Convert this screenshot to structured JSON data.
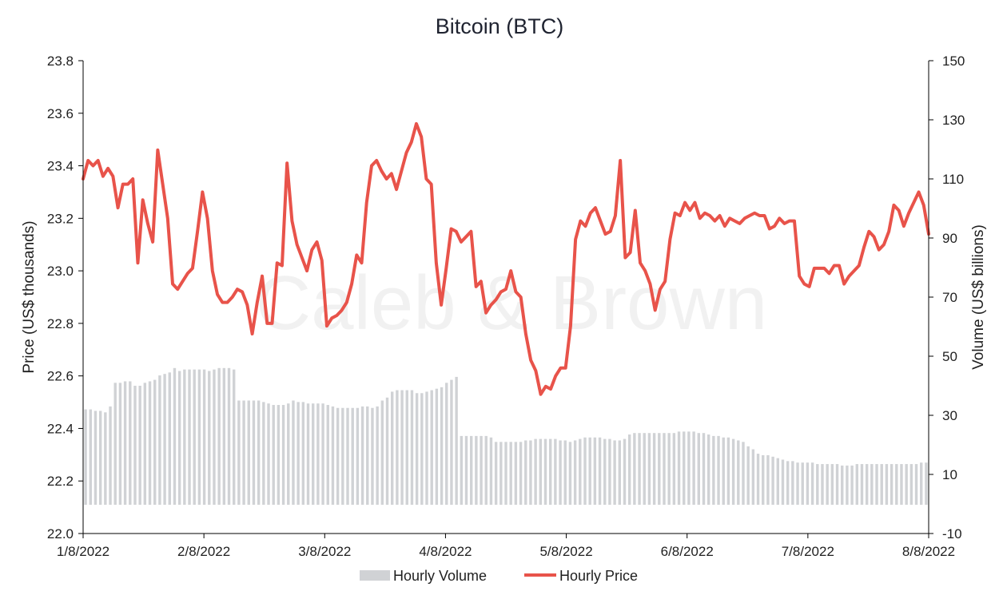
{
  "chart_data": {
    "type": "line",
    "title": "Bitcoin (BTC)",
    "watermark": "Caleb & Brown",
    "ylabel": "Price (US$ thousands)",
    "y2label": "Volume (US$ billions)",
    "ylim": [
      22.0,
      23.8
    ],
    "y2lim": [
      -10,
      150
    ],
    "yticks": [
      "23.8",
      "23.6",
      "23.4",
      "23.2",
      "23.0",
      "22.8",
      "22.6",
      "22.4",
      "22.2",
      "22.0"
    ],
    "y2ticks": [
      "150",
      "130",
      "110",
      "90",
      "70",
      "50",
      "30",
      "10",
      "-10"
    ],
    "xticks": [
      "1/8/2022",
      "2/8/2022",
      "3/8/2022",
      "4/8/2022",
      "5/8/2022",
      "6/8/2022",
      "7/8/2022",
      "8/8/2022"
    ],
    "x_range_days": [
      0,
      7
    ],
    "legend": {
      "position": "bottom",
      "volume_label": "Hourly Volume",
      "price_label": "Hourly Price"
    },
    "colors": {
      "price": "#e8534a",
      "volume": "#d0d2d5",
      "axis": "#000000"
    },
    "price": [
      23.35,
      23.42,
      23.4,
      23.42,
      23.36,
      23.39,
      23.36,
      23.24,
      23.33,
      23.33,
      23.35,
      23.03,
      23.27,
      23.18,
      23.11,
      23.46,
      23.33,
      23.2,
      22.95,
      22.93,
      22.96,
      22.99,
      23.01,
      23.15,
      23.3,
      23.2,
      23.0,
      22.91,
      22.88,
      22.88,
      22.9,
      22.93,
      22.92,
      22.87,
      22.76,
      22.88,
      22.98,
      22.8,
      22.8,
      23.03,
      23.02,
      23.41,
      23.19,
      23.1,
      23.05,
      23.0,
      23.08,
      23.11,
      23.04,
      22.79,
      22.82,
      22.83,
      22.85,
      22.88,
      22.95,
      23.06,
      23.03,
      23.26,
      23.4,
      23.42,
      23.38,
      23.35,
      23.37,
      23.31,
      23.38,
      23.45,
      23.49,
      23.56,
      23.51,
      23.35,
      23.33,
      23.03,
      22.87,
      23.01,
      23.16,
      23.15,
      23.11,
      23.13,
      23.15,
      22.94,
      22.96,
      22.84,
      22.87,
      22.89,
      22.92,
      22.93,
      23.0,
      22.92,
      22.9,
      22.76,
      22.66,
      22.62,
      22.53,
      22.56,
      22.55,
      22.6,
      22.63,
      22.63,
      22.79,
      23.12,
      23.19,
      23.17,
      23.22,
      23.24,
      23.19,
      23.14,
      23.15,
      23.21,
      23.42,
      23.05,
      23.07,
      23.23,
      23.03,
      23.0,
      22.95,
      22.85,
      22.93,
      22.96,
      23.12,
      23.22,
      23.21,
      23.26,
      23.23,
      23.26,
      23.2,
      23.22,
      23.21,
      23.19,
      23.21,
      23.17,
      23.2,
      23.19,
      23.18,
      23.2,
      23.21,
      23.22,
      23.21,
      23.21,
      23.16,
      23.17,
      23.2,
      23.18,
      23.19,
      23.19,
      22.98,
      22.95,
      22.94,
      23.01,
      23.01,
      23.01,
      22.99,
      23.02,
      23.02,
      22.95,
      22.98,
      23.0,
      23.02,
      23.09,
      23.15,
      23.13,
      23.08,
      23.1,
      23.15,
      23.25,
      23.23,
      23.17,
      23.22,
      23.26,
      23.3,
      23.25,
      23.14
    ],
    "volume": [
      32,
      32,
      31.5,
      31.5,
      31,
      33,
      41,
      41,
      41.5,
      41.5,
      40,
      40,
      41,
      41.5,
      42,
      43.5,
      44,
      44.5,
      46,
      45,
      45.5,
      45.5,
      45.5,
      45.5,
      45.5,
      45,
      45.5,
      46,
      46,
      46,
      45.5,
      35,
      35,
      35,
      35,
      35,
      34.5,
      34,
      33.5,
      33.5,
      33.5,
      34,
      35,
      34.5,
      34.5,
      34,
      34,
      34,
      34,
      33.5,
      33,
      32.5,
      32.5,
      32.5,
      32.5,
      32.5,
      33,
      33,
      32.5,
      33,
      35,
      36,
      38,
      38.5,
      38.5,
      38.5,
      38.5,
      37.5,
      37.5,
      38,
      38.5,
      39,
      39.5,
      41,
      42,
      43,
      23,
      23,
      23,
      23,
      23,
      23,
      22.5,
      21,
      21,
      21,
      21,
      21,
      21,
      21.5,
      21.5,
      22,
      22,
      22,
      22,
      22,
      21.5,
      21.5,
      21,
      21.5,
      22,
      22.5,
      22.5,
      22.5,
      22.5,
      22,
      22,
      21.5,
      21.5,
      22,
      23.5,
      24,
      24,
      24,
      24,
      24,
      24,
      24,
      24,
      24,
      24.5,
      24.5,
      24.5,
      24.5,
      24,
      24,
      23.5,
      23,
      23,
      22.5,
      22.5,
      22,
      21.5,
      21,
      19.5,
      18.5,
      17,
      16.5,
      16.5,
      16,
      15.5,
      15,
      14.5,
      14.5,
      14,
      14,
      14,
      14,
      13.5,
      13.5,
      13.5,
      13.5,
      13.5,
      13,
      13,
      13,
      13.5,
      13.5,
      13.5,
      13.5,
      13.5,
      13.5,
      13.5,
      13.5,
      13.5,
      13.5,
      13.5,
      13.5,
      13.5,
      14,
      14
    ]
  }
}
